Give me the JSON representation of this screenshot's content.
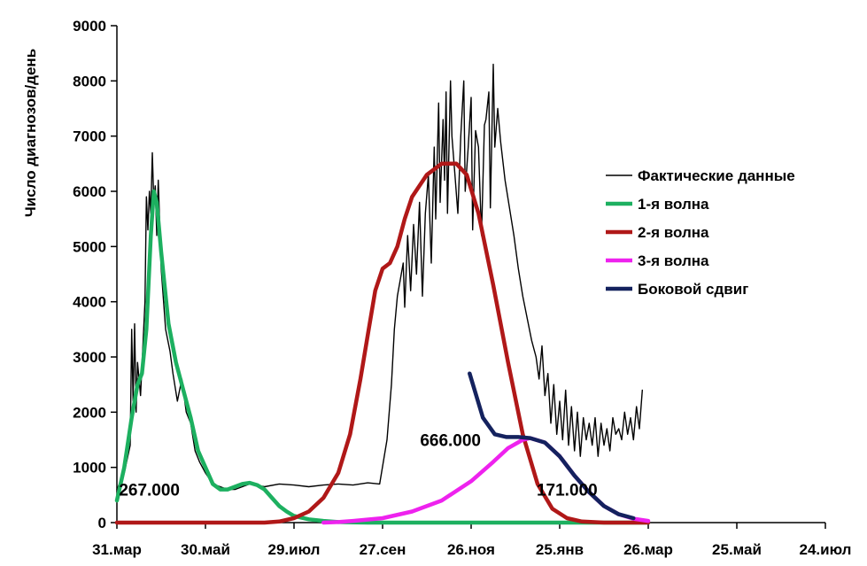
{
  "chart_data": {
    "type": "line",
    "title": "",
    "ylabel": "Число диагнозов/день",
    "xlabel": "",
    "ylim": [
      0,
      9000
    ],
    "yticks": [
      0,
      1000,
      2000,
      3000,
      4000,
      5000,
      6000,
      7000,
      8000,
      9000
    ],
    "xlim_days": [
      0,
      480
    ],
    "xticks": [
      {
        "label": "31.мар",
        "day": 0
      },
      {
        "label": "30.май",
        "day": 60
      },
      {
        "label": "29.июл",
        "day": 120
      },
      {
        "label": "27.сен",
        "day": 180
      },
      {
        "label": "26.ноя",
        "day": 240
      },
      {
        "label": "25.янв",
        "day": 300
      },
      {
        "label": "26.мар",
        "day": 360
      },
      {
        "label": "25.май",
        "day": 420
      },
      {
        "label": "24.июл",
        "day": 480
      }
    ],
    "legend_position": "right",
    "series": [
      {
        "name": "Фактические данные",
        "color": "#000000",
        "points": [
          [
            0,
            600
          ],
          [
            5,
            900
          ],
          [
            9,
            1400
          ],
          [
            10,
            3500
          ],
          [
            11,
            2200
          ],
          [
            12,
            3600
          ],
          [
            13,
            2000
          ],
          [
            14,
            2900
          ],
          [
            16,
            2300
          ],
          [
            19,
            4000
          ],
          [
            20,
            5900
          ],
          [
            21,
            5300
          ],
          [
            22,
            6000
          ],
          [
            23,
            5600
          ],
          [
            24,
            6700
          ],
          [
            25,
            5800
          ],
          [
            26,
            6100
          ],
          [
            27,
            5200
          ],
          [
            28,
            6200
          ],
          [
            30,
            4600
          ],
          [
            33,
            3500
          ],
          [
            36,
            3100
          ],
          [
            38,
            2700
          ],
          [
            41,
            2200
          ],
          [
            44,
            2600
          ],
          [
            47,
            2000
          ],
          [
            50,
            1800
          ],
          [
            53,
            1300
          ],
          [
            56,
            1100
          ],
          [
            60,
            900
          ],
          [
            65,
            700
          ],
          [
            70,
            650
          ],
          [
            75,
            600
          ],
          [
            80,
            600
          ],
          [
            90,
            700
          ],
          [
            100,
            650
          ],
          [
            110,
            700
          ],
          [
            120,
            680
          ],
          [
            130,
            650
          ],
          [
            140,
            680
          ],
          [
            150,
            700
          ],
          [
            160,
            680
          ],
          [
            170,
            720
          ],
          [
            178,
            700
          ],
          [
            183,
            1500
          ],
          [
            186,
            2500
          ],
          [
            188,
            3500
          ],
          [
            190,
            4100
          ],
          [
            192,
            4400
          ],
          [
            194,
            4700
          ],
          [
            195,
            3900
          ],
          [
            197,
            5200
          ],
          [
            199,
            4200
          ],
          [
            201,
            5400
          ],
          [
            203,
            4500
          ],
          [
            205,
            5800
          ],
          [
            207,
            4100
          ],
          [
            209,
            5600
          ],
          [
            211,
            6300
          ],
          [
            213,
            4700
          ],
          [
            215,
            6800
          ],
          [
            216,
            5500
          ],
          [
            218,
            7600
          ],
          [
            219,
            5800
          ],
          [
            221,
            7300
          ],
          [
            222,
            6200
          ],
          [
            223,
            7800
          ],
          [
            224,
            5600
          ],
          [
            226,
            8000
          ],
          [
            227,
            7000
          ],
          [
            229,
            6300
          ],
          [
            231,
            5600
          ],
          [
            233,
            7000
          ],
          [
            235,
            8000
          ],
          [
            236,
            6000
          ],
          [
            238,
            6800
          ],
          [
            240,
            7700
          ],
          [
            241,
            5300
          ],
          [
            243,
            7100
          ],
          [
            245,
            6800
          ],
          [
            247,
            5200
          ],
          [
            249,
            7200
          ],
          [
            250,
            7300
          ],
          [
            252,
            7800
          ],
          [
            253,
            5700
          ],
          [
            255,
            8300
          ],
          [
            256,
            6800
          ],
          [
            258,
            7500
          ],
          [
            260,
            6900
          ],
          [
            263,
            6200
          ],
          [
            266,
            5700
          ],
          [
            269,
            5200
          ],
          [
            272,
            4600
          ],
          [
            275,
            4100
          ],
          [
            278,
            3700
          ],
          [
            281,
            3300
          ],
          [
            284,
            3000
          ],
          [
            286,
            2600
          ],
          [
            288,
            3200
          ],
          [
            290,
            2300
          ],
          [
            292,
            2700
          ],
          [
            294,
            1800
          ],
          [
            296,
            2500
          ],
          [
            298,
            1600
          ],
          [
            300,
            2200
          ],
          [
            302,
            1500
          ],
          [
            304,
            2400
          ],
          [
            306,
            1400
          ],
          [
            308,
            2100
          ],
          [
            310,
            1300
          ],
          [
            312,
            2000
          ],
          [
            314,
            1200
          ],
          [
            316,
            1900
          ],
          [
            318,
            1500
          ],
          [
            320,
            1800
          ],
          [
            322,
            1400
          ],
          [
            324,
            1900
          ],
          [
            326,
            1200
          ],
          [
            328,
            1800
          ],
          [
            330,
            1400
          ],
          [
            332,
            1700
          ],
          [
            334,
            1300
          ],
          [
            336,
            1900
          ],
          [
            338,
            1600
          ],
          [
            340,
            1700
          ],
          [
            342,
            1500
          ],
          [
            344,
            2000
          ],
          [
            346,
            1600
          ],
          [
            348,
            1900
          ],
          [
            350,
            1500
          ],
          [
            352,
            2100
          ],
          [
            354,
            1700
          ],
          [
            356,
            2400
          ]
        ]
      },
      {
        "name": "1-я волна",
        "color": "#1DB060",
        "points": [
          [
            0,
            400
          ],
          [
            5,
            1000
          ],
          [
            10,
            1900
          ],
          [
            14,
            2500
          ],
          [
            17,
            2700
          ],
          [
            20,
            3500
          ],
          [
            23,
            5200
          ],
          [
            25,
            6000
          ],
          [
            27,
            5800
          ],
          [
            30,
            4900
          ],
          [
            35,
            3600
          ],
          [
            40,
            2900
          ],
          [
            45,
            2400
          ],
          [
            50,
            1900
          ],
          [
            55,
            1300
          ],
          [
            60,
            1000
          ],
          [
            65,
            700
          ],
          [
            70,
            600
          ],
          [
            75,
            600
          ],
          [
            80,
            650
          ],
          [
            85,
            700
          ],
          [
            90,
            720
          ],
          [
            95,
            680
          ],
          [
            100,
            600
          ],
          [
            105,
            450
          ],
          [
            110,
            300
          ],
          [
            115,
            200
          ],
          [
            120,
            120
          ],
          [
            130,
            60
          ],
          [
            140,
            30
          ],
          [
            150,
            10
          ],
          [
            160,
            5
          ],
          [
            170,
            0
          ],
          [
            200,
            0
          ],
          [
            240,
            0
          ],
          [
            280,
            0
          ],
          [
            320,
            0
          ],
          [
            360,
            0
          ]
        ]
      },
      {
        "name": "2-я волна",
        "color": "#B01818",
        "points": [
          [
            0,
            0
          ],
          [
            100,
            0
          ],
          [
            110,
            20
          ],
          [
            120,
            80
          ],
          [
            130,
            200
          ],
          [
            140,
            450
          ],
          [
            150,
            900
          ],
          [
            158,
            1600
          ],
          [
            165,
            2600
          ],
          [
            170,
            3400
          ],
          [
            175,
            4200
          ],
          [
            180,
            4600
          ],
          [
            185,
            4700
          ],
          [
            190,
            5000
          ],
          [
            195,
            5500
          ],
          [
            200,
            5900
          ],
          [
            210,
            6300
          ],
          [
            220,
            6500
          ],
          [
            230,
            6500
          ],
          [
            237,
            6300
          ],
          [
            245,
            5600
          ],
          [
            255,
            4300
          ],
          [
            265,
            2900
          ],
          [
            275,
            1600
          ],
          [
            285,
            700
          ],
          [
            295,
            250
          ],
          [
            305,
            80
          ],
          [
            315,
            20
          ],
          [
            330,
            0
          ],
          [
            360,
            0
          ]
        ]
      },
      {
        "name": "3-я волна",
        "color": "#EE22EE",
        "points": [
          [
            140,
            0
          ],
          [
            150,
            10
          ],
          [
            160,
            30
          ],
          [
            180,
            80
          ],
          [
            200,
            200
          ],
          [
            220,
            400
          ],
          [
            240,
            750
          ],
          [
            255,
            1100
          ],
          [
            265,
            1350
          ],
          [
            275,
            1500
          ],
          [
            280,
            1530
          ],
          [
            290,
            1450
          ],
          [
            300,
            1200
          ],
          [
            310,
            850
          ],
          [
            320,
            550
          ],
          [
            330,
            300
          ],
          [
            340,
            150
          ],
          [
            350,
            70
          ],
          [
            360,
            30
          ]
        ]
      },
      {
        "name": "Боковой сдвиг",
        "color": "#14225E",
        "points": [
          [
            239,
            2700
          ],
          [
            248,
            1900
          ],
          [
            256,
            1600
          ],
          [
            264,
            1550
          ],
          [
            272,
            1550
          ],
          [
            280,
            1530
          ],
          [
            290,
            1450
          ],
          [
            300,
            1200
          ],
          [
            310,
            850
          ],
          [
            320,
            550
          ],
          [
            330,
            300
          ],
          [
            340,
            150
          ],
          [
            350,
            80
          ]
        ]
      }
    ],
    "annotations": [
      {
        "text": "267.000",
        "day": 22,
        "y": 600
      },
      {
        "text": "666.000",
        "day": 226,
        "y": 1500
      },
      {
        "text": "171.000",
        "day": 305,
        "y": 600
      }
    ]
  }
}
